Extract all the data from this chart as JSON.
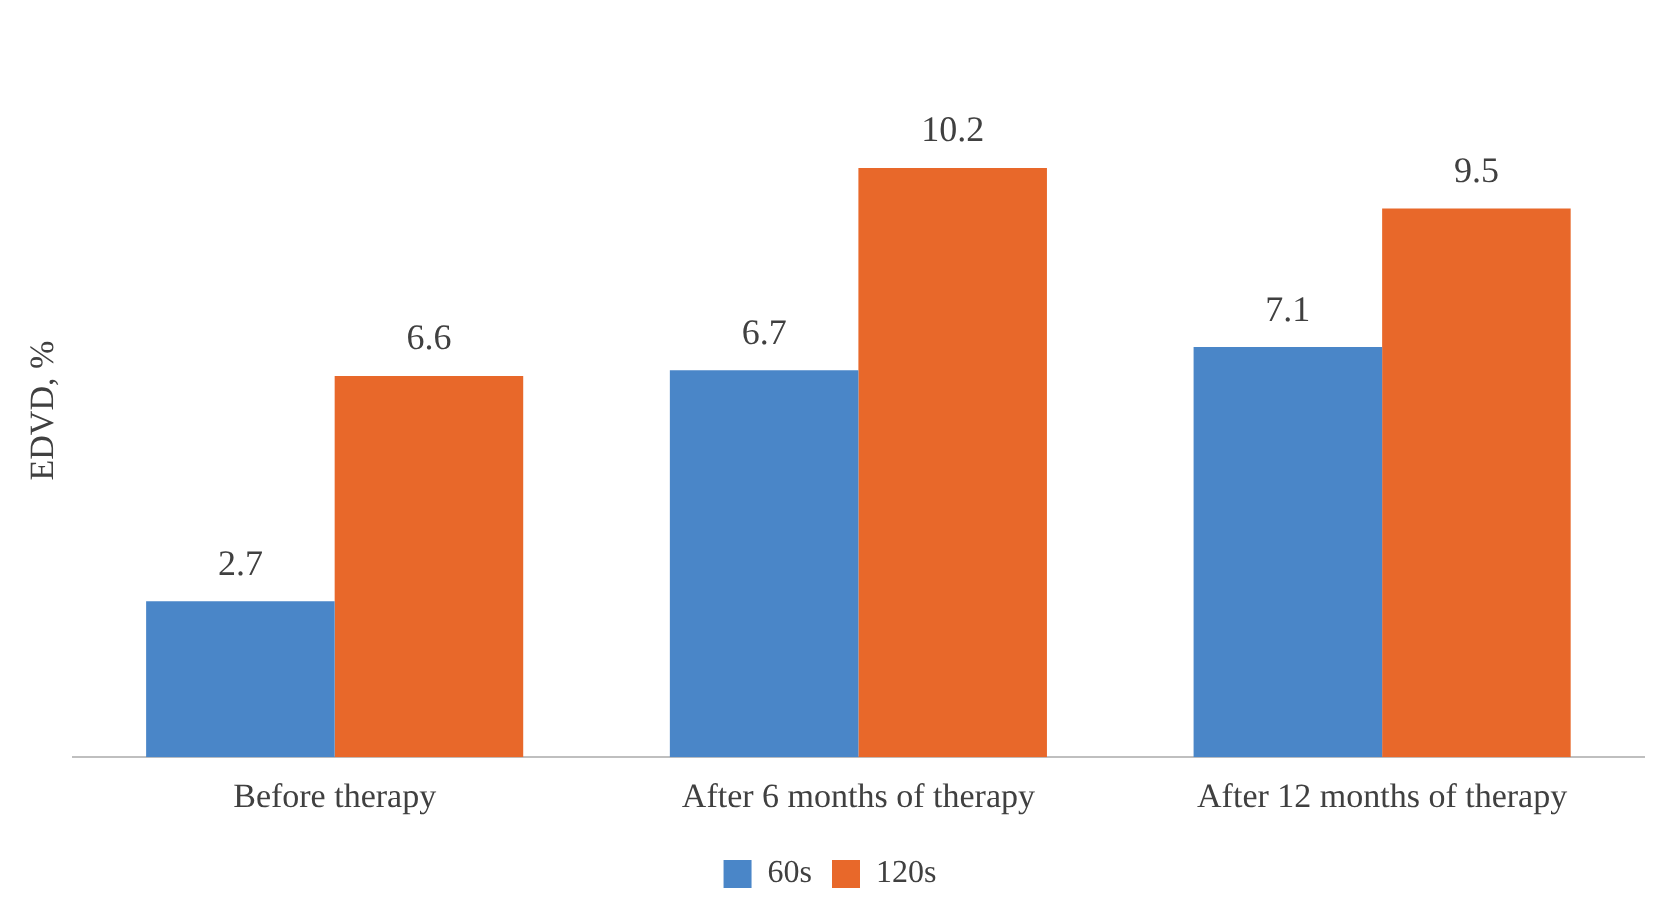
{
  "chart_data": {
    "type": "bar",
    "ylabel": "EDVD, %",
    "categories": [
      "Before therapy",
      "After 6 months of therapy",
      "After 12 months of therapy"
    ],
    "series": [
      {
        "name": "60s",
        "color": "#4a86c8",
        "values": [
          2.7,
          6.7,
          7.1
        ]
      },
      {
        "name": "120s",
        "color": "#e8682a",
        "values": [
          6.6,
          10.2,
          9.5
        ]
      }
    ],
    "data_labels": true,
    "legend": "bottom",
    "grid": false
  }
}
